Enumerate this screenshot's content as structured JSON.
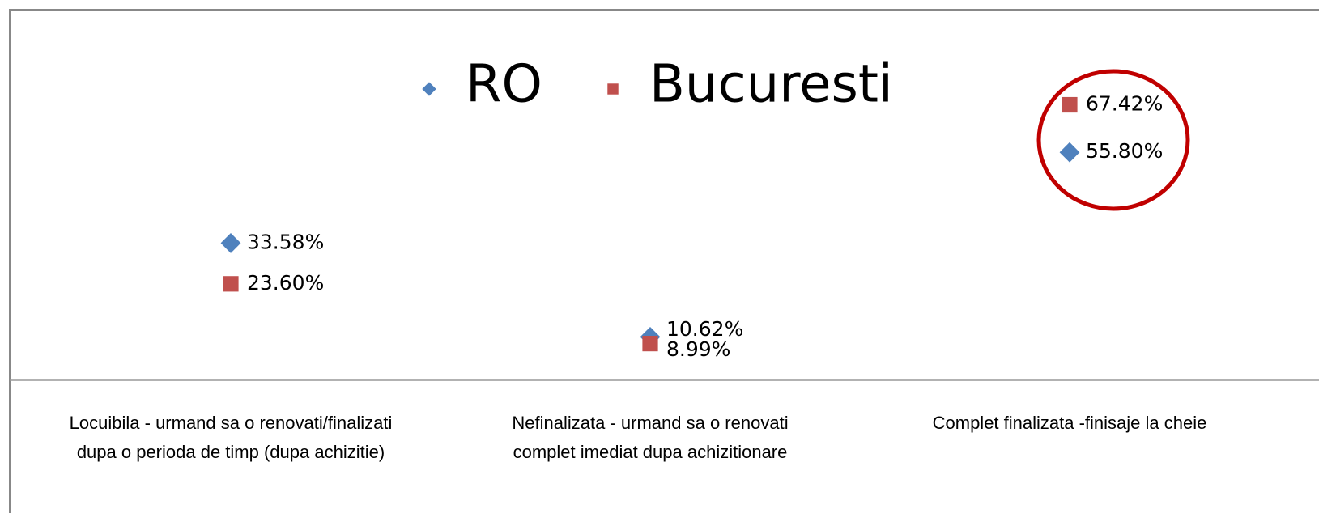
{
  "chart_data": {
    "type": "scatter",
    "categories": [
      "Locuibila - urmand sa o renovati/finalizati\ndupa o perioda de timp (dupa achizitie)",
      "Nefinalizata - urmand sa o renovati\ncomplet imediat dupa achizitionare",
      "Complet finalizata -finisaje la cheie"
    ],
    "series": [
      {
        "name": "RO",
        "color": "#4f81bd",
        "marker": "diamond",
        "values": [
          33.58,
          10.62,
          55.8
        ],
        "value_labels": [
          "33.58%",
          "10.62%",
          "55.80%"
        ]
      },
      {
        "name": "Bucuresti",
        "color": "#c0504d",
        "marker": "square",
        "values": [
          23.6,
          8.99,
          67.42
        ],
        "value_labels": [
          "23.60%",
          "8.99%",
          "67.42%"
        ]
      }
    ],
    "ylim": [
      0,
      80
    ],
    "legend": "top"
  }
}
